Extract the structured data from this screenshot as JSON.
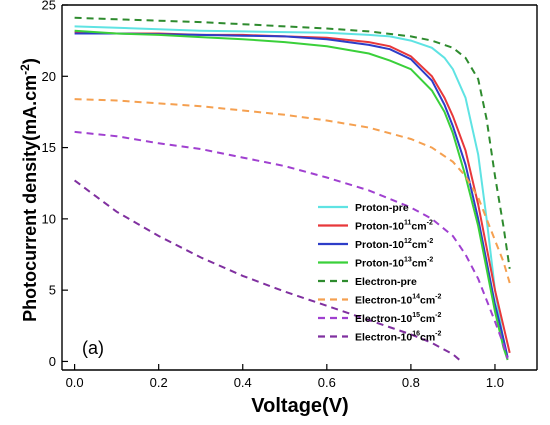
{
  "chart_data": {
    "type": "line",
    "panel_label": "(a)",
    "xlabel": "Voltage(V)",
    "ylabel_main": "Photocurrent density(mA.cm",
    "ylabel_sup": "-2",
    "ylabel_tail": ")",
    "xlim": [
      -0.03,
      1.1
    ],
    "ylim": [
      -0.6,
      25
    ],
    "x_ticks": [
      0.0,
      0.2,
      0.4,
      0.6,
      0.8,
      1.0
    ],
    "x_tick_labels": [
      "0.0",
      "0.2",
      "0.4",
      "0.6",
      "0.8",
      "1.0"
    ],
    "y_ticks": [
      0,
      5,
      10,
      15,
      20,
      25
    ],
    "y_tick_labels": [
      "0",
      "5",
      "10",
      "15",
      "20",
      "25"
    ],
    "legend_position": "lower-right",
    "series": [
      {
        "name": "Proton-pre",
        "name_sup": "",
        "color": "#5fe3e3",
        "dash": "solid",
        "points": [
          [
            0,
            23.5
          ],
          [
            0.1,
            23.4
          ],
          [
            0.2,
            23.3
          ],
          [
            0.3,
            23.2
          ],
          [
            0.4,
            23.15
          ],
          [
            0.5,
            23.1
          ],
          [
            0.6,
            23.05
          ],
          [
            0.7,
            22.9
          ],
          [
            0.75,
            22.8
          ],
          [
            0.8,
            22.5
          ],
          [
            0.85,
            22.0
          ],
          [
            0.88,
            21.3
          ],
          [
            0.9,
            20.5
          ],
          [
            0.93,
            18.5
          ],
          [
            0.96,
            14.5
          ],
          [
            0.98,
            10.0
          ],
          [
            1.0,
            5.0
          ],
          [
            1.02,
            1.5
          ],
          [
            1.03,
            0.2
          ]
        ]
      },
      {
        "name": "Proton-10",
        "name_sup": "11",
        "name_tail": "cm",
        "name_tail_sup": "-2",
        "color": "#e8383a",
        "dash": "solid",
        "points": [
          [
            0,
            23.1
          ],
          [
            0.1,
            23.0
          ],
          [
            0.2,
            23.0
          ],
          [
            0.3,
            22.9
          ],
          [
            0.4,
            22.9
          ],
          [
            0.5,
            22.8
          ],
          [
            0.6,
            22.7
          ],
          [
            0.7,
            22.4
          ],
          [
            0.75,
            22.1
          ],
          [
            0.8,
            21.4
          ],
          [
            0.85,
            20.0
          ],
          [
            0.88,
            18.5
          ],
          [
            0.9,
            17.2
          ],
          [
            0.93,
            14.8
          ],
          [
            0.96,
            11.0
          ],
          [
            0.98,
            8.0
          ],
          [
            1.0,
            5.0
          ],
          [
            1.02,
            2.5
          ],
          [
            1.035,
            0.6
          ]
        ]
      },
      {
        "name": "Proton-10",
        "name_sup": "12",
        "name_tail": "cm",
        "name_tail_sup": "-2",
        "color": "#2d3dc8",
        "dash": "solid",
        "points": [
          [
            0,
            23.0
          ],
          [
            0.1,
            23.0
          ],
          [
            0.2,
            22.95
          ],
          [
            0.3,
            22.9
          ],
          [
            0.4,
            22.85
          ],
          [
            0.5,
            22.8
          ],
          [
            0.6,
            22.6
          ],
          [
            0.7,
            22.2
          ],
          [
            0.75,
            21.9
          ],
          [
            0.8,
            21.2
          ],
          [
            0.85,
            19.7
          ],
          [
            0.88,
            18.0
          ],
          [
            0.9,
            16.5
          ],
          [
            0.93,
            13.8
          ],
          [
            0.96,
            10.0
          ],
          [
            0.98,
            7.0
          ],
          [
            1.0,
            4.0
          ],
          [
            1.02,
            1.6
          ],
          [
            1.03,
            0.3
          ]
        ]
      },
      {
        "name": "Proton-10",
        "name_sup": "13",
        "name_tail": "cm",
        "name_tail_sup": "-2",
        "color": "#3ad03a",
        "dash": "solid",
        "points": [
          [
            0,
            23.2
          ],
          [
            0.1,
            23.0
          ],
          [
            0.2,
            22.9
          ],
          [
            0.3,
            22.75
          ],
          [
            0.4,
            22.6
          ],
          [
            0.5,
            22.4
          ],
          [
            0.6,
            22.1
          ],
          [
            0.7,
            21.6
          ],
          [
            0.75,
            21.1
          ],
          [
            0.8,
            20.5
          ],
          [
            0.85,
            19.0
          ],
          [
            0.88,
            17.5
          ],
          [
            0.9,
            16.0
          ],
          [
            0.93,
            13.0
          ],
          [
            0.96,
            9.5
          ],
          [
            0.98,
            6.5
          ],
          [
            1.0,
            3.5
          ],
          [
            1.02,
            1.0
          ],
          [
            1.03,
            0.1
          ]
        ]
      },
      {
        "name": "Electron-pre",
        "name_sup": "",
        "color": "#2e8b2e",
        "dash": "dashed",
        "points": [
          [
            0,
            24.1
          ],
          [
            0.1,
            24.0
          ],
          [
            0.2,
            23.9
          ],
          [
            0.3,
            23.8
          ],
          [
            0.4,
            23.65
          ],
          [
            0.5,
            23.5
          ],
          [
            0.6,
            23.35
          ],
          [
            0.7,
            23.15
          ],
          [
            0.8,
            22.8
          ],
          [
            0.85,
            22.5
          ],
          [
            0.9,
            22.0
          ],
          [
            0.93,
            21.3
          ],
          [
            0.96,
            19.8
          ],
          [
            0.98,
            17.0
          ],
          [
            1.0,
            13.0
          ],
          [
            1.02,
            9.5
          ],
          [
            1.035,
            6.5
          ]
        ]
      },
      {
        "name": "Electron-10",
        "name_sup": "14",
        "name_tail": "cm",
        "name_tail_sup": "-2",
        "color": "#f5a050",
        "dash": "dashed",
        "points": [
          [
            0,
            18.4
          ],
          [
            0.1,
            18.3
          ],
          [
            0.2,
            18.1
          ],
          [
            0.3,
            17.9
          ],
          [
            0.4,
            17.6
          ],
          [
            0.5,
            17.3
          ],
          [
            0.6,
            16.9
          ],
          [
            0.7,
            16.4
          ],
          [
            0.8,
            15.6
          ],
          [
            0.85,
            15.0
          ],
          [
            0.9,
            14.0
          ],
          [
            0.93,
            13.0
          ],
          [
            0.96,
            11.5
          ],
          [
            0.98,
            10.0
          ],
          [
            1.0,
            8.5
          ],
          [
            1.02,
            7.0
          ],
          [
            1.035,
            5.5
          ]
        ]
      },
      {
        "name": "Electron-10",
        "name_sup": "15",
        "name_tail": "cm",
        "name_tail_sup": "-2",
        "color": "#a040d0",
        "dash": "dashed",
        "points": [
          [
            0,
            16.1
          ],
          [
            0.1,
            15.8
          ],
          [
            0.2,
            15.3
          ],
          [
            0.3,
            14.9
          ],
          [
            0.4,
            14.3
          ],
          [
            0.5,
            13.7
          ],
          [
            0.6,
            12.9
          ],
          [
            0.7,
            12.0
          ],
          [
            0.8,
            10.8
          ],
          [
            0.85,
            10.0
          ],
          [
            0.9,
            8.8
          ],
          [
            0.93,
            7.5
          ],
          [
            0.96,
            5.8
          ],
          [
            0.98,
            4.3
          ],
          [
            1.0,
            2.8
          ],
          [
            1.02,
            1.2
          ],
          [
            1.03,
            0.2
          ]
        ]
      },
      {
        "name": "Electron-10",
        "name_sup": "16",
        "name_tail": "cm",
        "name_tail_sup": "-2",
        "color": "#8030a0",
        "dash": "dashed",
        "points": [
          [
            0,
            12.7
          ],
          [
            0.05,
            11.6
          ],
          [
            0.1,
            10.5
          ],
          [
            0.2,
            8.8
          ],
          [
            0.3,
            7.3
          ],
          [
            0.4,
            6.0
          ],
          [
            0.5,
            4.9
          ],
          [
            0.6,
            3.9
          ],
          [
            0.7,
            2.9
          ],
          [
            0.8,
            1.9
          ],
          [
            0.85,
            1.3
          ],
          [
            0.9,
            0.5
          ],
          [
            0.92,
            0.0
          ]
        ]
      }
    ]
  }
}
